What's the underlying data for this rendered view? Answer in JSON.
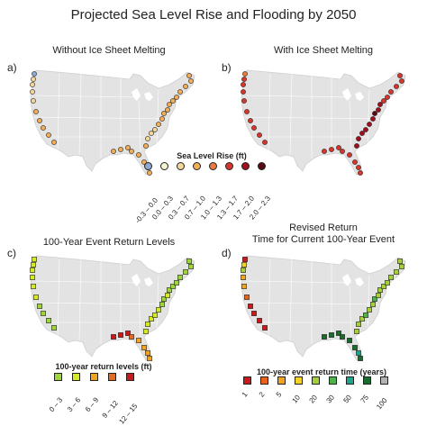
{
  "title": "Projected Sea Level Rise and Flooding by 2050",
  "panels": [
    {
      "label": "a)",
      "title": [
        "Without Ice Sheet Melting"
      ]
    },
    {
      "label": "b)",
      "title": [
        "With Ice Sheet Melting"
      ]
    },
    {
      "label": "c)",
      "title": [
        "100-Year Event Return Levels"
      ]
    },
    {
      "label": "d)",
      "title": [
        "Revised Return",
        "Time for Current 100-Year Event"
      ]
    }
  ],
  "legends": {
    "slr": {
      "title": "Sea Level Rise (ft)",
      "ticks": [
        "-0.3 – 0.0",
        "0.0 – 0.3",
        "0.3 – 0.7",
        "0.7 – 1.0",
        "1.0 – 1.3",
        "1.3 – 1.7",
        "1.7 – 2.0",
        "2.0 – 2.3"
      ],
      "colors": [
        "#8ea8cf",
        "#f6f4cc",
        "#f5d69a",
        "#f3ad55",
        "#eb7b3a",
        "#d9352a",
        "#a30e1e",
        "#5a0a12"
      ]
    },
    "levels": {
      "title": "100-year return levels (ft)",
      "ticks": [
        "0 – 3",
        "3 – 6",
        "6 – 9",
        "9 – 12",
        "12 – 15"
      ],
      "colors": [
        "#9dd53a",
        "#d5ea22",
        "#f4a321",
        "#e86a1e",
        "#cc1818"
      ]
    },
    "return_time": {
      "title": "100-year event return time (years)",
      "ticks": [
        "1",
        "2",
        "5",
        "10",
        "20",
        "30",
        "50",
        "75",
        "100"
      ],
      "colors": [
        "#cc1818",
        "#e8641c",
        "#f4a321",
        "#f3d323",
        "#a6d03a",
        "#4db34a",
        "#1fa58c",
        "#1a6b2e",
        "#b3b3b3"
      ]
    }
  },
  "colors": {
    "land": "#e3e3e3",
    "land_stroke": "#ffffff",
    "marker_stroke": "#222222"
  }
}
